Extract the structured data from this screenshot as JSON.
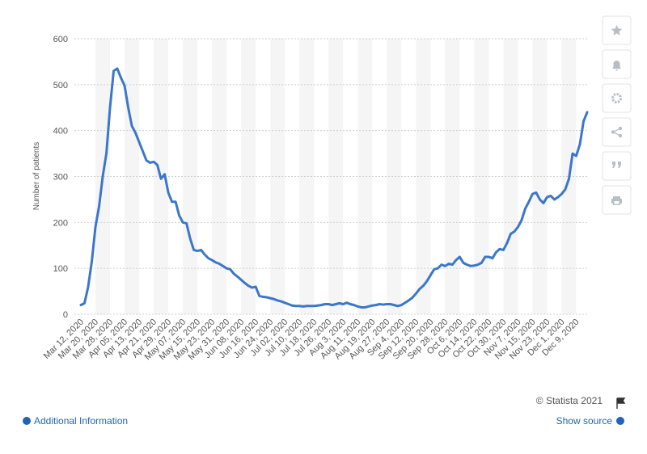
{
  "chart_data": {
    "type": "line",
    "y_label": "Number of patients",
    "color": "#3b77c9",
    "grid": true,
    "ylim": [
      0,
      600
    ],
    "yticks": [
      0,
      100,
      200,
      300,
      400,
      500,
      600
    ],
    "categories": [
      "Mar 12, 2020",
      null,
      null,
      null,
      "Mar 20, 2020",
      null,
      null,
      null,
      "Mar 28, 2020",
      null,
      null,
      null,
      "Apr 05, 2020",
      null,
      null,
      null,
      "Apr 13, 2020",
      null,
      null,
      null,
      "Apr 21, 2020",
      null,
      null,
      null,
      "Apr 29, 2020",
      null,
      null,
      null,
      "May 07, 2020",
      null,
      null,
      null,
      "May 15, 2020",
      null,
      null,
      null,
      "May 23, 2020",
      null,
      null,
      null,
      "May 31, 2020",
      null,
      null,
      null,
      "Jun 08, 2020",
      null,
      null,
      null,
      "Jun 16, 2020",
      null,
      null,
      null,
      "Jun 24, 2020",
      null,
      null,
      null,
      "Jul 02, 2020",
      null,
      null,
      null,
      "Jul 10, 2020",
      null,
      null,
      null,
      "Jul 18, 2020",
      null,
      null,
      null,
      "Jul 26, 2020",
      null,
      null,
      null,
      "Aug 3, 2020",
      null,
      null,
      null,
      "Aug 11, 2020",
      null,
      null,
      null,
      "Aug 19, 2020",
      null,
      null,
      null,
      "Aug 27, 2020",
      null,
      null,
      null,
      "Sep 4, 2020",
      null,
      null,
      null,
      "Sep 12, 2020",
      null,
      null,
      null,
      "Sep 20, 2020",
      null,
      null,
      null,
      "Sep 28, 2020",
      null,
      null,
      null,
      "Oct 6, 2020",
      null,
      null,
      null,
      "Oct 14, 2020",
      null,
      null,
      null,
      "Oct 22, 2020",
      null,
      null,
      null,
      "Oct 30, 2020",
      null,
      null,
      null,
      "Nov 7, 2020",
      null,
      null,
      null,
      "Nov 15, 2020",
      null,
      null,
      null,
      "Nov 23, 2020",
      null,
      null,
      null,
      "Dec 1, 2020",
      null,
      null,
      null,
      "Dec 9, 2020",
      null,
      null,
      null
    ],
    "values": [
      20,
      24,
      60,
      115,
      190,
      235,
      300,
      350,
      450,
      530,
      535,
      515,
      498,
      450,
      410,
      395,
      375,
      355,
      335,
      330,
      332,
      325,
      295,
      305,
      265,
      245,
      245,
      215,
      200,
      198,
      165,
      140,
      138,
      140,
      130,
      122,
      118,
      113,
      110,
      105,
      100,
      98,
      88,
      82,
      75,
      68,
      62,
      58,
      60,
      40,
      38,
      37,
      35,
      33,
      30,
      28,
      25,
      22,
      19,
      18,
      18,
      17,
      18,
      18,
      18,
      19,
      20,
      22,
      22,
      20,
      22,
      24,
      22,
      25,
      22,
      20,
      17,
      15,
      15,
      17,
      19,
      20,
      22,
      21,
      22,
      22,
      20,
      18,
      20,
      25,
      30,
      36,
      45,
      55,
      62,
      72,
      85,
      98,
      100,
      108,
      105,
      110,
      108,
      118,
      125,
      112,
      108,
      105,
      106,
      108,
      112,
      125,
      125,
      122,
      135,
      142,
      140,
      155,
      175,
      180,
      190,
      205,
      230,
      245,
      262,
      265,
      250,
      242,
      255,
      258,
      250,
      255,
      262,
      272,
      295,
      350,
      345,
      370,
      420,
      440
    ]
  },
  "footer": {
    "copyright": "© Statista 2021",
    "additional_info": "Additional Information",
    "show_source": "Show source"
  }
}
